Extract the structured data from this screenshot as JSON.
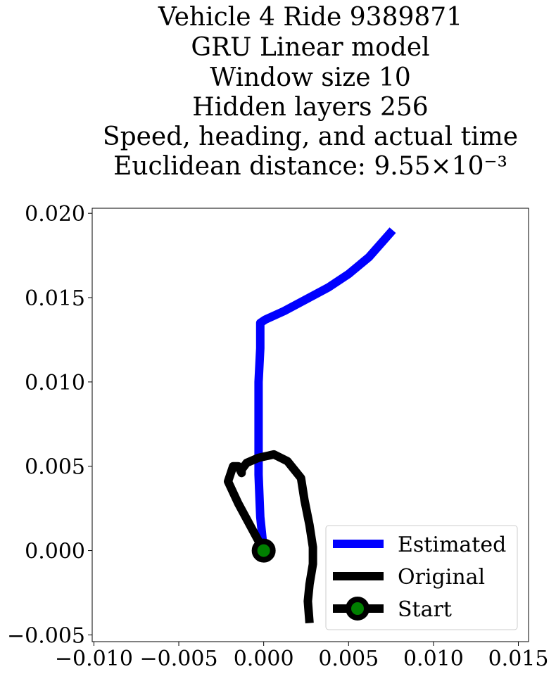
{
  "chart_data": {
    "type": "line",
    "title_lines": [
      "Vehicle 4 Ride 9389871",
      "GRU Linear model",
      "Window size 10",
      "Hidden layers 256",
      "Speed, heading, and actual time",
      "Euclidean distance: 9.55×10⁻³"
    ],
    "xlabel": "",
    "ylabel": "",
    "xlim": [
      -0.0101,
      0.0156
    ],
    "ylim": [
      -0.0054,
      0.0203
    ],
    "x_ticks": [
      -0.01,
      -0.005,
      0.0,
      0.005,
      0.01,
      0.015
    ],
    "y_ticks": [
      -0.005,
      0.0,
      0.005,
      0.01,
      0.015,
      0.02
    ],
    "x_tick_labels": [
      "−0.010",
      "−0.005",
      "0.000",
      "0.005",
      "0.010",
      "0.015"
    ],
    "y_tick_labels": [
      "−0.005",
      "0.000",
      "0.005",
      "0.010",
      "0.015",
      "0.020"
    ],
    "grid": false,
    "legend_position": "lower-right",
    "series": [
      {
        "name": "Estimated",
        "color": "#0000ff",
        "x": [
          0.0,
          -0.0002,
          -0.0003,
          -0.0003,
          -0.0003,
          -0.0002,
          -0.0002,
          0.0001,
          0.0012,
          0.0025,
          0.0038,
          0.005,
          0.0062,
          0.0076
        ],
        "y": [
          0.0,
          0.002,
          0.0045,
          0.007,
          0.01,
          0.012,
          0.0135,
          0.0137,
          0.0142,
          0.0149,
          0.0156,
          0.0164,
          0.0174,
          0.019
        ]
      },
      {
        "name": "Original",
        "color": "#000000",
        "x": [
          0.0,
          -0.0015,
          -0.0021,
          -0.0018,
          -0.0015,
          -0.0013,
          -0.0013,
          -0.001,
          -0.0003,
          0.0006,
          0.0014,
          0.0022,
          0.0024,
          0.0027,
          0.0029,
          0.0029,
          0.0027,
          0.0026,
          0.0027
        ],
        "y": [
          0.0,
          0.0028,
          0.0041,
          0.005,
          0.005,
          0.0046,
          0.0048,
          0.0052,
          0.0055,
          0.0057,
          0.0053,
          0.0043,
          0.003,
          0.0015,
          0.0002,
          -0.0008,
          -0.002,
          -0.003,
          -0.0043
        ]
      }
    ],
    "start_point": {
      "name": "Start",
      "x": 0.0,
      "y": 0.0,
      "marker_color": "#008000",
      "edge_color": "#000000"
    },
    "legend_entries": [
      "Estimated",
      "Original",
      "Start"
    ]
  }
}
